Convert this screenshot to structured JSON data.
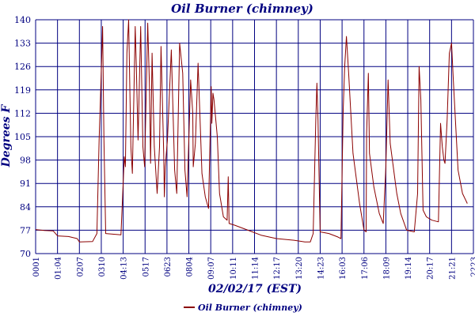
{
  "chart_data": {
    "type": "line",
    "title": "Oil Burner (chimney)",
    "xlabel": "02/02/17 (EST)",
    "ylabel": "Degrees F",
    "ylim": [
      70,
      140
    ],
    "yticks": [
      "70",
      "77",
      "84",
      "91",
      "98",
      "105",
      "112",
      "119",
      "126",
      "133",
      "140"
    ],
    "xticks": [
      "0001",
      "01:04",
      "0207",
      "0310",
      "04:13",
      "0517",
      "0623",
      "0804",
      "09:07",
      "10:11",
      "11:14",
      "12:17",
      "13:20",
      "14:23",
      "16:03",
      "17:06",
      "18:09",
      "19:14",
      "20:17",
      "21:21",
      "2223"
    ],
    "grid": true,
    "legend_position": "bottom",
    "series": [
      {
        "name": "Oil Burner (chimney)",
        "color": "#8b0000",
        "points": [
          [
            0,
            77.2
          ],
          [
            0.4,
            76.9
          ],
          [
            0.8,
            76.8
          ],
          [
            1.0,
            75.3
          ],
          [
            1.5,
            75.1
          ],
          [
            1.9,
            74.5
          ],
          [
            2.0,
            73.5
          ],
          [
            2.6,
            73.6
          ],
          [
            2.8,
            76.0
          ],
          [
            2.9,
            104
          ],
          [
            3.0,
            125
          ],
          [
            3.06,
            138
          ],
          [
            3.12,
            104
          ],
          [
            3.2,
            76.0
          ],
          [
            3.9,
            75.6
          ],
          [
            4.05,
            99
          ],
          [
            4.1,
            96
          ],
          [
            4.17,
            130
          ],
          [
            4.25,
            140
          ],
          [
            4.35,
            102
          ],
          [
            4.42,
            94
          ],
          [
            4.55,
            138
          ],
          [
            4.6,
            126
          ],
          [
            4.68,
            104
          ],
          [
            4.8,
            138
          ],
          [
            4.9,
            102
          ],
          [
            4.98,
            96
          ],
          [
            5.12,
            139
          ],
          [
            5.2,
            120
          ],
          [
            5.25,
            97
          ],
          [
            5.32,
            130
          ],
          [
            5.42,
            102
          ],
          [
            5.55,
            88
          ],
          [
            5.66,
            102
          ],
          [
            5.73,
            132
          ],
          [
            5.85,
            100
          ],
          [
            5.88,
            87
          ],
          [
            5.92,
            96
          ],
          [
            6.02,
            104
          ],
          [
            6.2,
            131
          ],
          [
            6.35,
            95
          ],
          [
            6.45,
            88
          ],
          [
            6.58,
            133
          ],
          [
            6.72,
            124
          ],
          [
            6.82,
            95
          ],
          [
            6.92,
            87
          ],
          [
            7.08,
            122
          ],
          [
            7.18,
            112
          ],
          [
            7.2,
            96
          ],
          [
            7.3,
            103
          ],
          [
            7.42,
            127
          ],
          [
            7.6,
            94
          ],
          [
            7.75,
            87
          ],
          [
            7.9,
            83.5
          ],
          [
            8.02,
            120
          ],
          [
            8.05,
            109
          ],
          [
            8.1,
            118
          ],
          [
            8.15,
            116
          ],
          [
            8.3,
            105
          ],
          [
            8.4,
            88
          ],
          [
            8.58,
            81
          ],
          [
            8.75,
            80
          ],
          [
            8.8,
            93
          ],
          [
            8.84,
            79
          ],
          [
            9.1,
            78.5
          ],
          [
            9.7,
            77
          ],
          [
            10.3,
            75.5
          ],
          [
            11,
            74.5
          ],
          [
            11.8,
            74
          ],
          [
            12.3,
            73.5
          ],
          [
            12.55,
            73.5
          ],
          [
            12.68,
            76
          ],
          [
            12.8,
            110
          ],
          [
            12.85,
            121
          ],
          [
            12.9,
            110
          ],
          [
            13.0,
            76.5
          ],
          [
            13.4,
            76
          ],
          [
            13.8,
            75
          ],
          [
            13.95,
            74.5
          ],
          [
            14.05,
            113
          ],
          [
            14.12,
            126
          ],
          [
            14.2,
            135
          ],
          [
            14.3,
            124
          ],
          [
            14.5,
            100
          ],
          [
            14.8,
            85
          ],
          [
            15.0,
            77
          ],
          [
            15.1,
            76.5
          ],
          [
            15.12,
            106
          ],
          [
            15.2,
            124
          ],
          [
            15.25,
            100
          ],
          [
            15.45,
            90
          ],
          [
            15.7,
            82
          ],
          [
            15.88,
            79
          ],
          [
            16.0,
            96
          ],
          [
            16.1,
            122
          ],
          [
            16.2,
            103
          ],
          [
            16.5,
            88
          ],
          [
            16.68,
            82
          ],
          [
            16.95,
            77
          ],
          [
            17.3,
            76.5
          ],
          [
            17.45,
            88
          ],
          [
            17.52,
            126
          ],
          [
            17.6,
            116
          ],
          [
            17.7,
            83
          ],
          [
            17.85,
            81
          ],
          [
            18.1,
            80
          ],
          [
            18.4,
            79.5
          ],
          [
            18.5,
            109
          ],
          [
            18.58,
            102
          ],
          [
            18.65,
            98
          ],
          [
            18.7,
            97
          ],
          [
            18.8,
            110
          ],
          [
            18.9,
            130
          ],
          [
            19.0,
            133
          ],
          [
            19.08,
            122
          ],
          [
            19.3,
            95
          ],
          [
            19.5,
            88
          ],
          [
            19.72,
            85
          ]
        ]
      }
    ]
  }
}
